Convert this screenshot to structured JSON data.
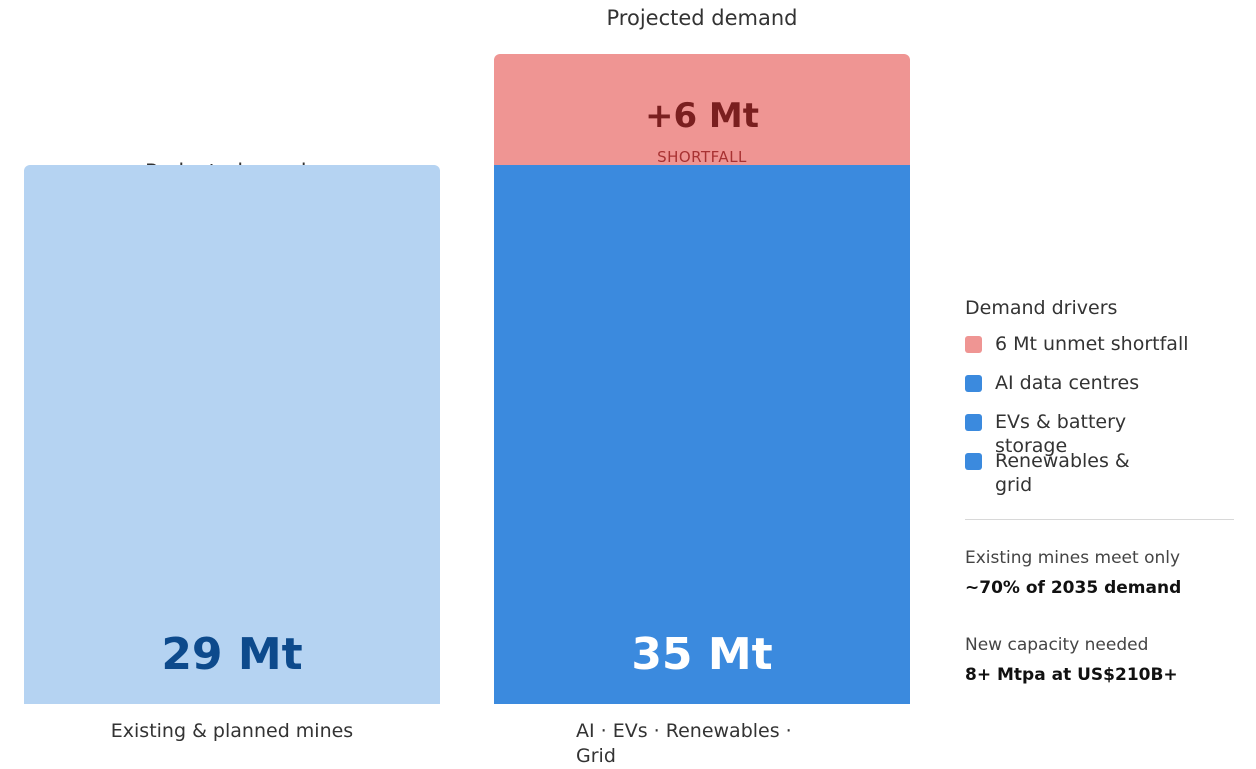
{
  "chart_data": {
    "type": "bar",
    "unit": "Mt",
    "ylim": [
      0,
      35
    ],
    "columns": [
      {
        "title": "Projected supply",
        "value": 29,
        "value_label": "29 Mt",
        "caption": "Existing & planned mines",
        "color": "#b5d3f2",
        "value_color": "#0d4a8c"
      },
      {
        "title": "Projected demand",
        "value": 35,
        "value_label": "35 Mt",
        "caption": "AI · EVs · Renewables · Grid",
        "color": "#3b8ade",
        "value_color": "#ffffff",
        "shortfall": {
          "value": 6,
          "value_label": "+6 Mt",
          "label": "SHORTFALL",
          "color": "#ef9593"
        }
      }
    ]
  },
  "legend": {
    "title": "Demand drivers",
    "items": [
      {
        "label": "6 Mt unmet shortfall",
        "color": "#ef9593"
      },
      {
        "label": "AI data centres",
        "color": "#3b8ade"
      },
      {
        "label": "EVs & battery storage",
        "color": "#3b8ade"
      },
      {
        "label": "Renewables & grid",
        "color": "#3b8ade"
      }
    ]
  },
  "notes": [
    {
      "label": "Existing mines meet only",
      "value": "~70% of 2035 demand"
    },
    {
      "label": "New capacity needed",
      "value": "8+ Mtpa at US$210B+"
    }
  ]
}
